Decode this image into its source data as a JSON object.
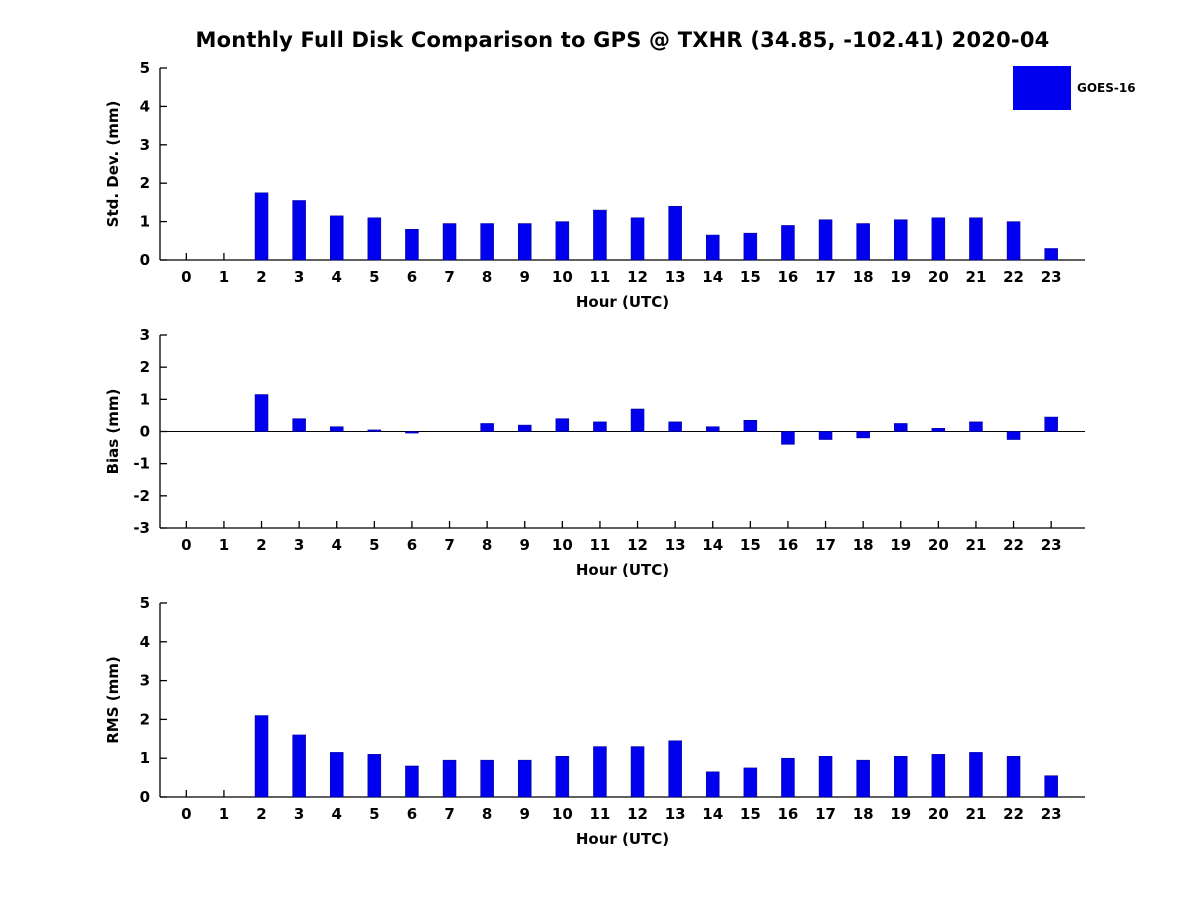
{
  "title": "Monthly Full Disk Comparison to GPS @ TXHR (34.85, -102.41) 2020-04",
  "legend": {
    "label": "GOES-16",
    "color": "#0000EE"
  },
  "chart_data": [
    {
      "type": "bar",
      "id": "std-dev",
      "ylabel": "Std. Dev. (mm)",
      "xlabel": "Hour (UTC)",
      "ylim": [
        0,
        5
      ],
      "yticks": [
        0,
        1,
        2,
        3,
        4,
        5
      ],
      "categories": [
        0,
        1,
        2,
        3,
        4,
        5,
        6,
        7,
        8,
        9,
        10,
        11,
        12,
        13,
        14,
        15,
        16,
        17,
        18,
        19,
        20,
        21,
        22,
        23
      ],
      "values": [
        0,
        0,
        1.75,
        1.55,
        1.15,
        1.1,
        0.8,
        0.95,
        0.95,
        0.95,
        1.0,
        1.3,
        1.1,
        1.4,
        0.65,
        0.7,
        0.9,
        1.05,
        0.95,
        1.05,
        1.1,
        1.1,
        1.0,
        0.3
      ]
    },
    {
      "type": "bar",
      "id": "bias",
      "ylabel": "Bias (mm)",
      "xlabel": "Hour (UTC)",
      "ylim": [
        -3,
        3
      ],
      "yticks": [
        -3,
        -2,
        -1,
        0,
        1,
        2,
        3
      ],
      "categories": [
        0,
        1,
        2,
        3,
        4,
        5,
        6,
        7,
        8,
        9,
        10,
        11,
        12,
        13,
        14,
        15,
        16,
        17,
        18,
        19,
        20,
        21,
        22,
        23
      ],
      "values": [
        0,
        0,
        1.15,
        0.4,
        0.15,
        0.05,
        -0.05,
        0,
        0.25,
        0.2,
        0.4,
        0.3,
        0.7,
        0.3,
        0.15,
        0.35,
        -0.4,
        -0.25,
        -0.2,
        0.25,
        0.1,
        0.3,
        -0.25,
        0.45
      ]
    },
    {
      "type": "bar",
      "id": "rms",
      "ylabel": "RMS (mm)",
      "xlabel": "Hour (UTC)",
      "ylim": [
        0,
        5
      ],
      "yticks": [
        0,
        1,
        2,
        3,
        4,
        5
      ],
      "categories": [
        0,
        1,
        2,
        3,
        4,
        5,
        6,
        7,
        8,
        9,
        10,
        11,
        12,
        13,
        14,
        15,
        16,
        17,
        18,
        19,
        20,
        21,
        22,
        23
      ],
      "values": [
        0,
        0,
        2.1,
        1.6,
        1.15,
        1.1,
        0.8,
        0.95,
        0.95,
        0.95,
        1.05,
        1.3,
        1.3,
        1.45,
        0.65,
        0.75,
        1.0,
        1.05,
        0.95,
        1.05,
        1.1,
        1.15,
        1.05,
        0.55
      ]
    }
  ]
}
